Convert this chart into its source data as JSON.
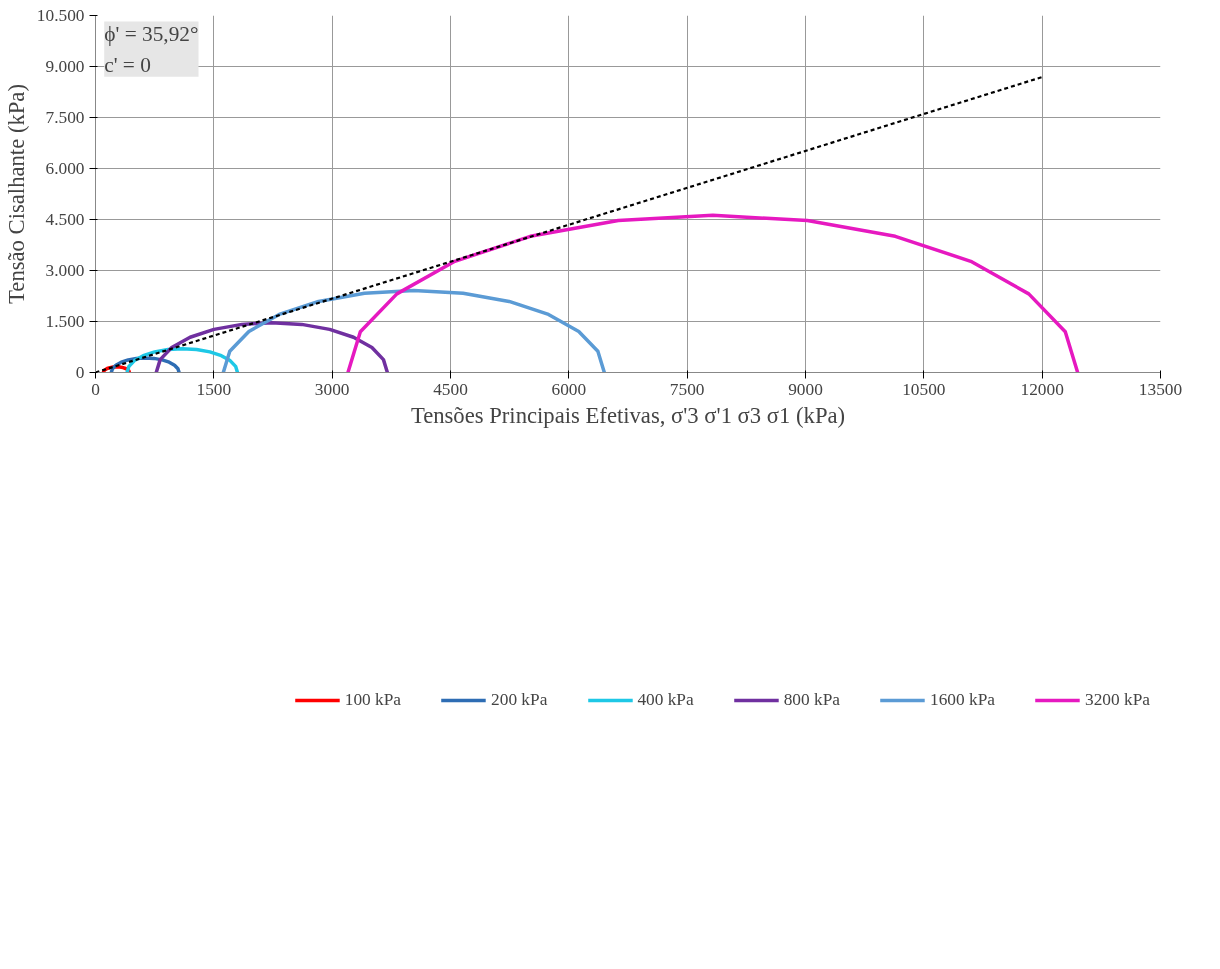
{
  "chart_data": {
    "type": "line",
    "xlabel": "Tensões Principais Efetivas, σ'3 σ'1 σ3 σ1 (kPa)",
    "ylabel": "Tensão Cisalhante (kPa)",
    "annotations": [
      "ϕ' = 35,92°",
      "c' = 0"
    ],
    "xlim": [
      0,
      13500
    ],
    "ylim": [
      0,
      10500
    ],
    "xticks": [
      0,
      1500,
      3000,
      4500,
      6000,
      7500,
      9000,
      10500,
      12000,
      13500
    ],
    "yticks": [
      0,
      {
        "value": 1500,
        "label": "1.500"
      },
      {
        "value": 3000,
        "label": "3.000"
      },
      {
        "value": 4500,
        "label": "4.500"
      },
      {
        "value": 6000,
        "label": "6.000"
      },
      {
        "value": 7500,
        "label": "7.500"
      },
      {
        "value": 9000,
        "label": "9.000"
      },
      {
        "value": 10500,
        "label": "10.500"
      }
    ],
    "grid": true,
    "legend": "bottom",
    "marker": "none",
    "line_style": "solid",
    "series": [
      {
        "name": "100 kPa",
        "color": "#ff0000",
        "x": [
          100,
          106,
          122,
          148,
          182,
          222,
          265,
          308,
          348,
          382,
          408,
          424,
          430
        ],
        "values": [
          0,
          43,
          83,
          117,
          143,
          159,
          165,
          159,
          143,
          117,
          83,
          43,
          0
        ]
      },
      {
        "name": "200 kPa",
        "color": "#2e6db4",
        "x": [
          200,
          215,
          258,
          326,
          415,
          519,
          630,
          741,
          845,
          934,
          1002,
          1045,
          1060
        ],
        "values": [
          0,
          111,
          215,
          304,
          372,
          415,
          430,
          415,
          372,
          304,
          215,
          111,
          0
        ]
      },
      {
        "name": "400 kPa",
        "color": "#1ec8e6",
        "x": [
          400,
          424,
          494,
          605,
          750,
          919,
          1100,
          1281,
          1450,
          1595,
          1706,
          1776,
          1800
        ],
        "values": [
          0,
          181,
          350,
          495,
          606,
          676,
          700,
          676,
          606,
          495,
          350,
          181,
          0
        ]
      },
      {
        "name": "800 kPa",
        "color": "#7030a0",
        "x": [
          770,
          820,
          966,
          1199,
          1502,
          1856,
          2235,
          2614,
          2968,
          3271,
          3504,
          3650,
          3700
        ],
        "values": [
          0,
          379,
          733,
          1036,
          1269,
          1415,
          1465,
          1415,
          1269,
          1036,
          733,
          379,
          0
        ]
      },
      {
        "name": "1600 kPa",
        "color": "#5b9bd5",
        "x": [
          1620,
          1702,
          1944,
          2328,
          2827,
          3410,
          4035,
          4660,
          5243,
          5742,
          6126,
          6368,
          6450
        ],
        "values": [
          0,
          625,
          1208,
          1707,
          2091,
          2333,
          2415,
          2333,
          2091,
          1707,
          1208,
          625,
          0
        ]
      },
      {
        "name": "3200 kPa",
        "color": "#e619c0",
        "x": [
          3200,
          3357,
          3820,
          4555,
          5512,
          6627,
          7825,
          9023,
          10138,
          11095,
          11830,
          12293,
          12450
        ],
        "values": [
          0,
          1198,
          2313,
          3270,
          4005,
          4468,
          4625,
          4468,
          4005,
          3270,
          2313,
          1198,
          0
        ]
      },
      {
        "color": "#000000",
        "line_style": "dashed",
        "x": [
          0,
          12000
        ],
        "values": [
          0,
          8690
        ]
      }
    ]
  }
}
